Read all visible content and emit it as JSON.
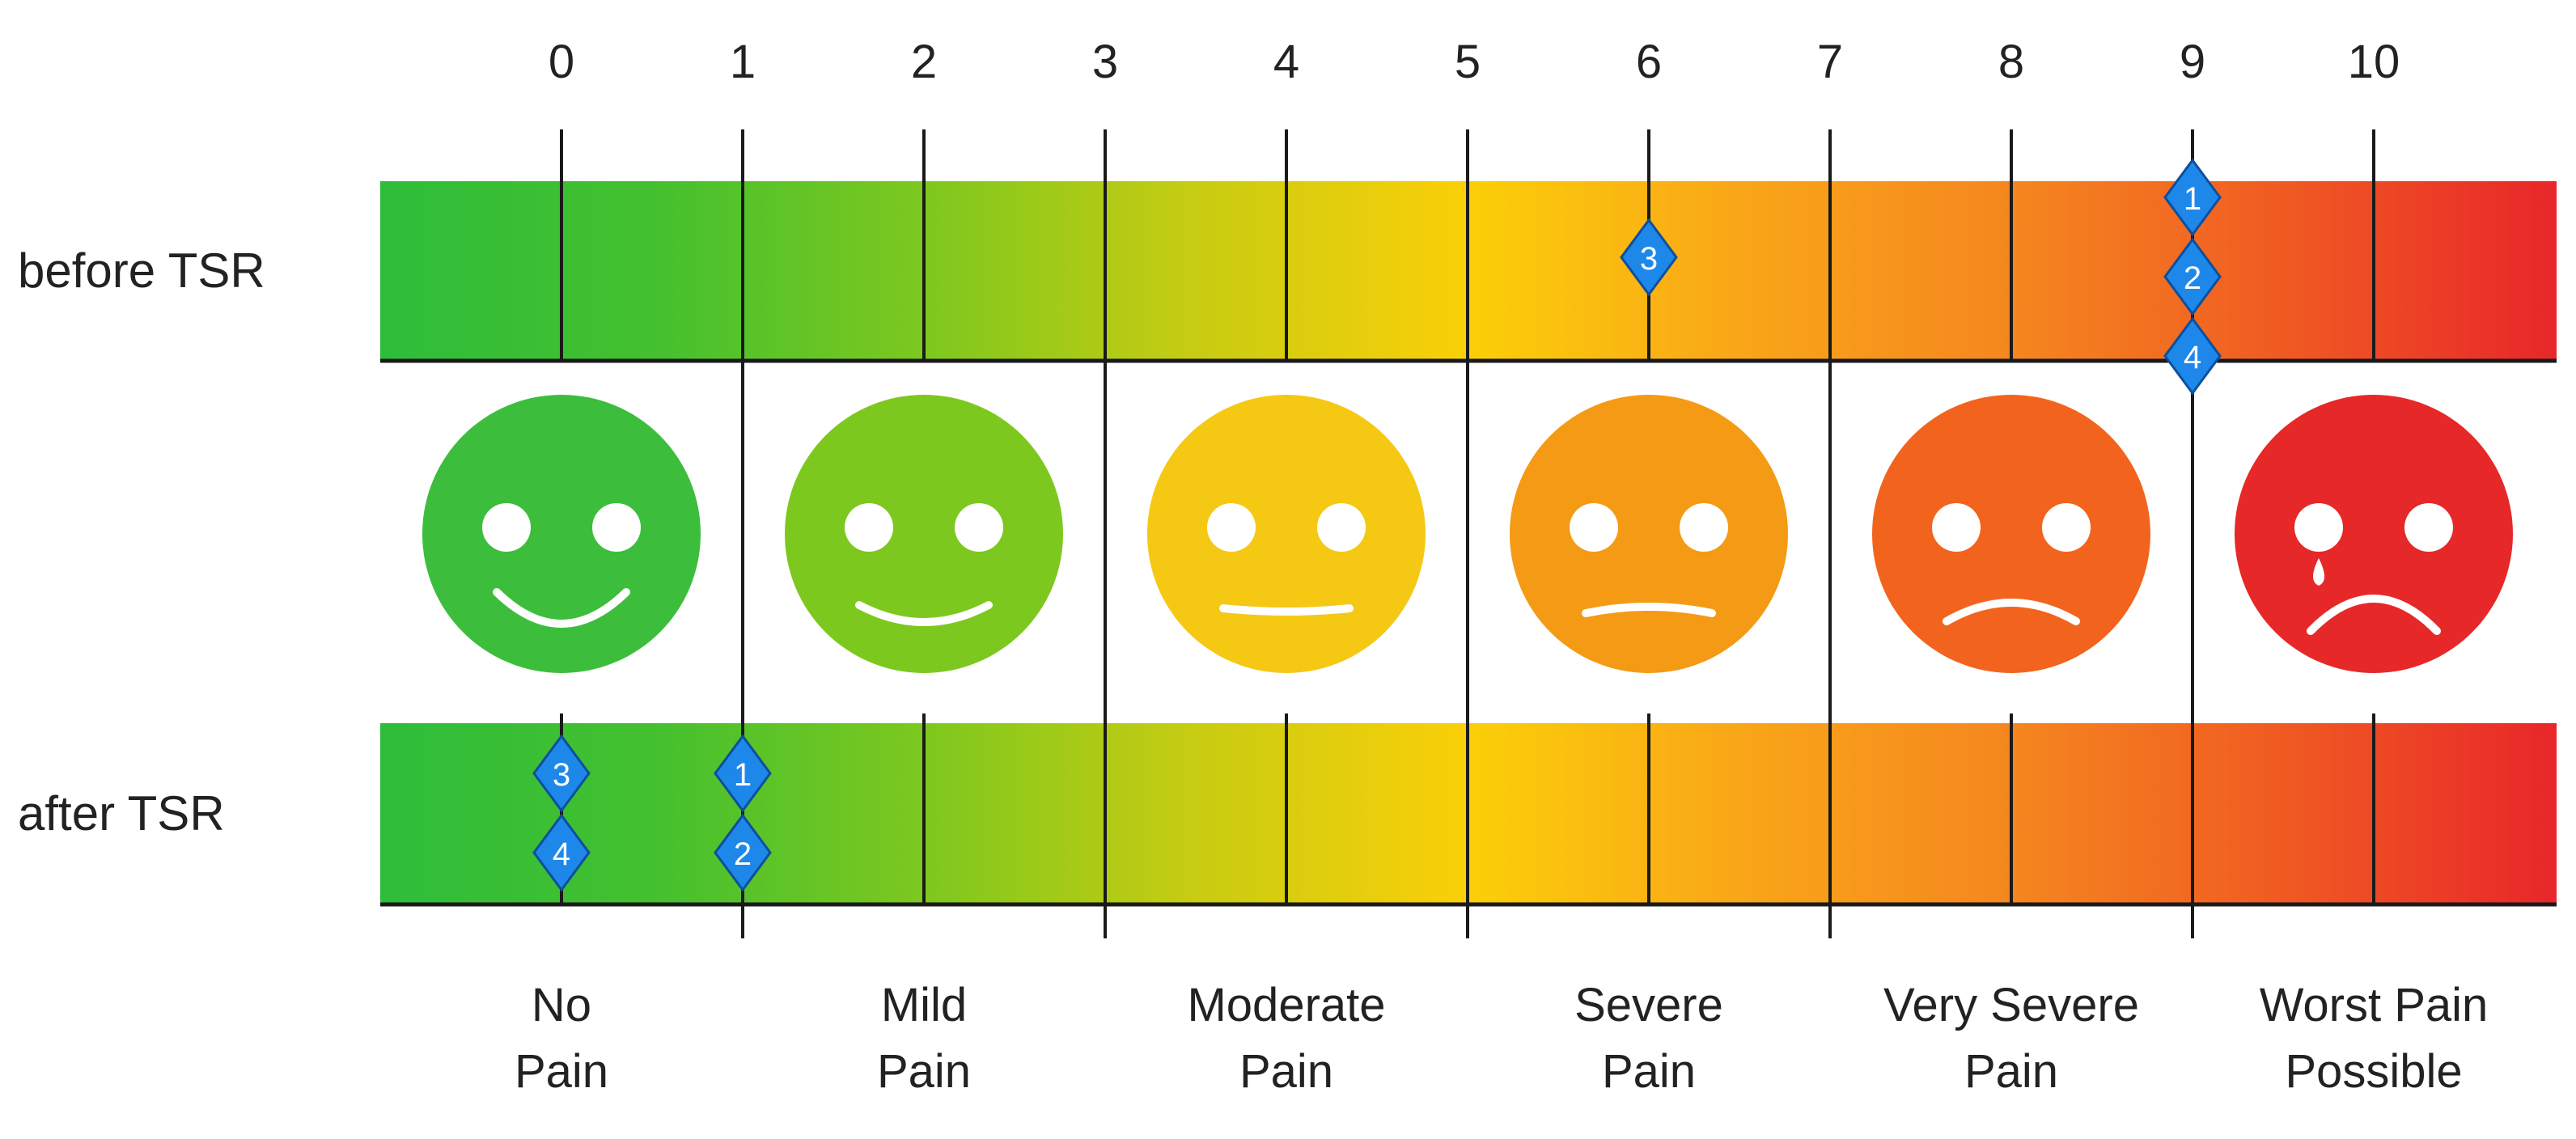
{
  "scale": {
    "ticks": [
      "0",
      "1",
      "2",
      "3",
      "4",
      "5",
      "6",
      "7",
      "8",
      "9",
      "10"
    ]
  },
  "rows": [
    {
      "label": "before TSR",
      "markers": [
        {
          "id": "1",
          "score": 9
        },
        {
          "id": "2",
          "score": 9
        },
        {
          "id": "3",
          "score": 6
        },
        {
          "id": "4",
          "score": 9
        }
      ]
    },
    {
      "label": "after TSR",
      "markers": [
        {
          "id": "1",
          "score": 1
        },
        {
          "id": "2",
          "score": 1
        },
        {
          "id": "3",
          "score": 0
        },
        {
          "id": "4",
          "score": 0
        }
      ]
    }
  ],
  "faces": [
    {
      "name": "face-no-pain",
      "score": 0,
      "color": "#3cbe3c",
      "expression": "big-smile"
    },
    {
      "name": "face-mild-pain",
      "score": 2,
      "color": "#7dc81e",
      "expression": "smile"
    },
    {
      "name": "face-moderate-pain",
      "score": 4,
      "color": "#f5c814",
      "expression": "neutral"
    },
    {
      "name": "face-severe-pain",
      "score": 6,
      "color": "#f59a14",
      "expression": "slight-frown"
    },
    {
      "name": "face-very-severe-pain",
      "score": 8,
      "color": "#f2641e",
      "expression": "frown"
    },
    {
      "name": "face-worst-pain",
      "score": 10,
      "color": "#e62828",
      "expression": "crying-frown"
    }
  ],
  "categories": [
    {
      "score": 0,
      "lines": [
        "No",
        "Pain"
      ]
    },
    {
      "score": 2,
      "lines": [
        "Mild",
        "Pain"
      ]
    },
    {
      "score": 4,
      "lines": [
        "Moderate",
        "Pain"
      ]
    },
    {
      "score": 6,
      "lines": [
        "Severe",
        "Pain"
      ]
    },
    {
      "score": 8,
      "lines": [
        "Very Severe",
        "Pain"
      ]
    },
    {
      "score": 10,
      "lines": [
        "Worst Pain",
        "Possible"
      ]
    }
  ],
  "colors": {
    "gradient": [
      "#2ebd3a",
      "#44c02f",
      "#7dc81e",
      "#c8cc12",
      "#fbcf08",
      "#f9a618",
      "#f5861f",
      "#f05a22",
      "#e8262a"
    ],
    "marker": "#1e88ea",
    "line": "#1a1a1a",
    "text": "#222222"
  }
}
